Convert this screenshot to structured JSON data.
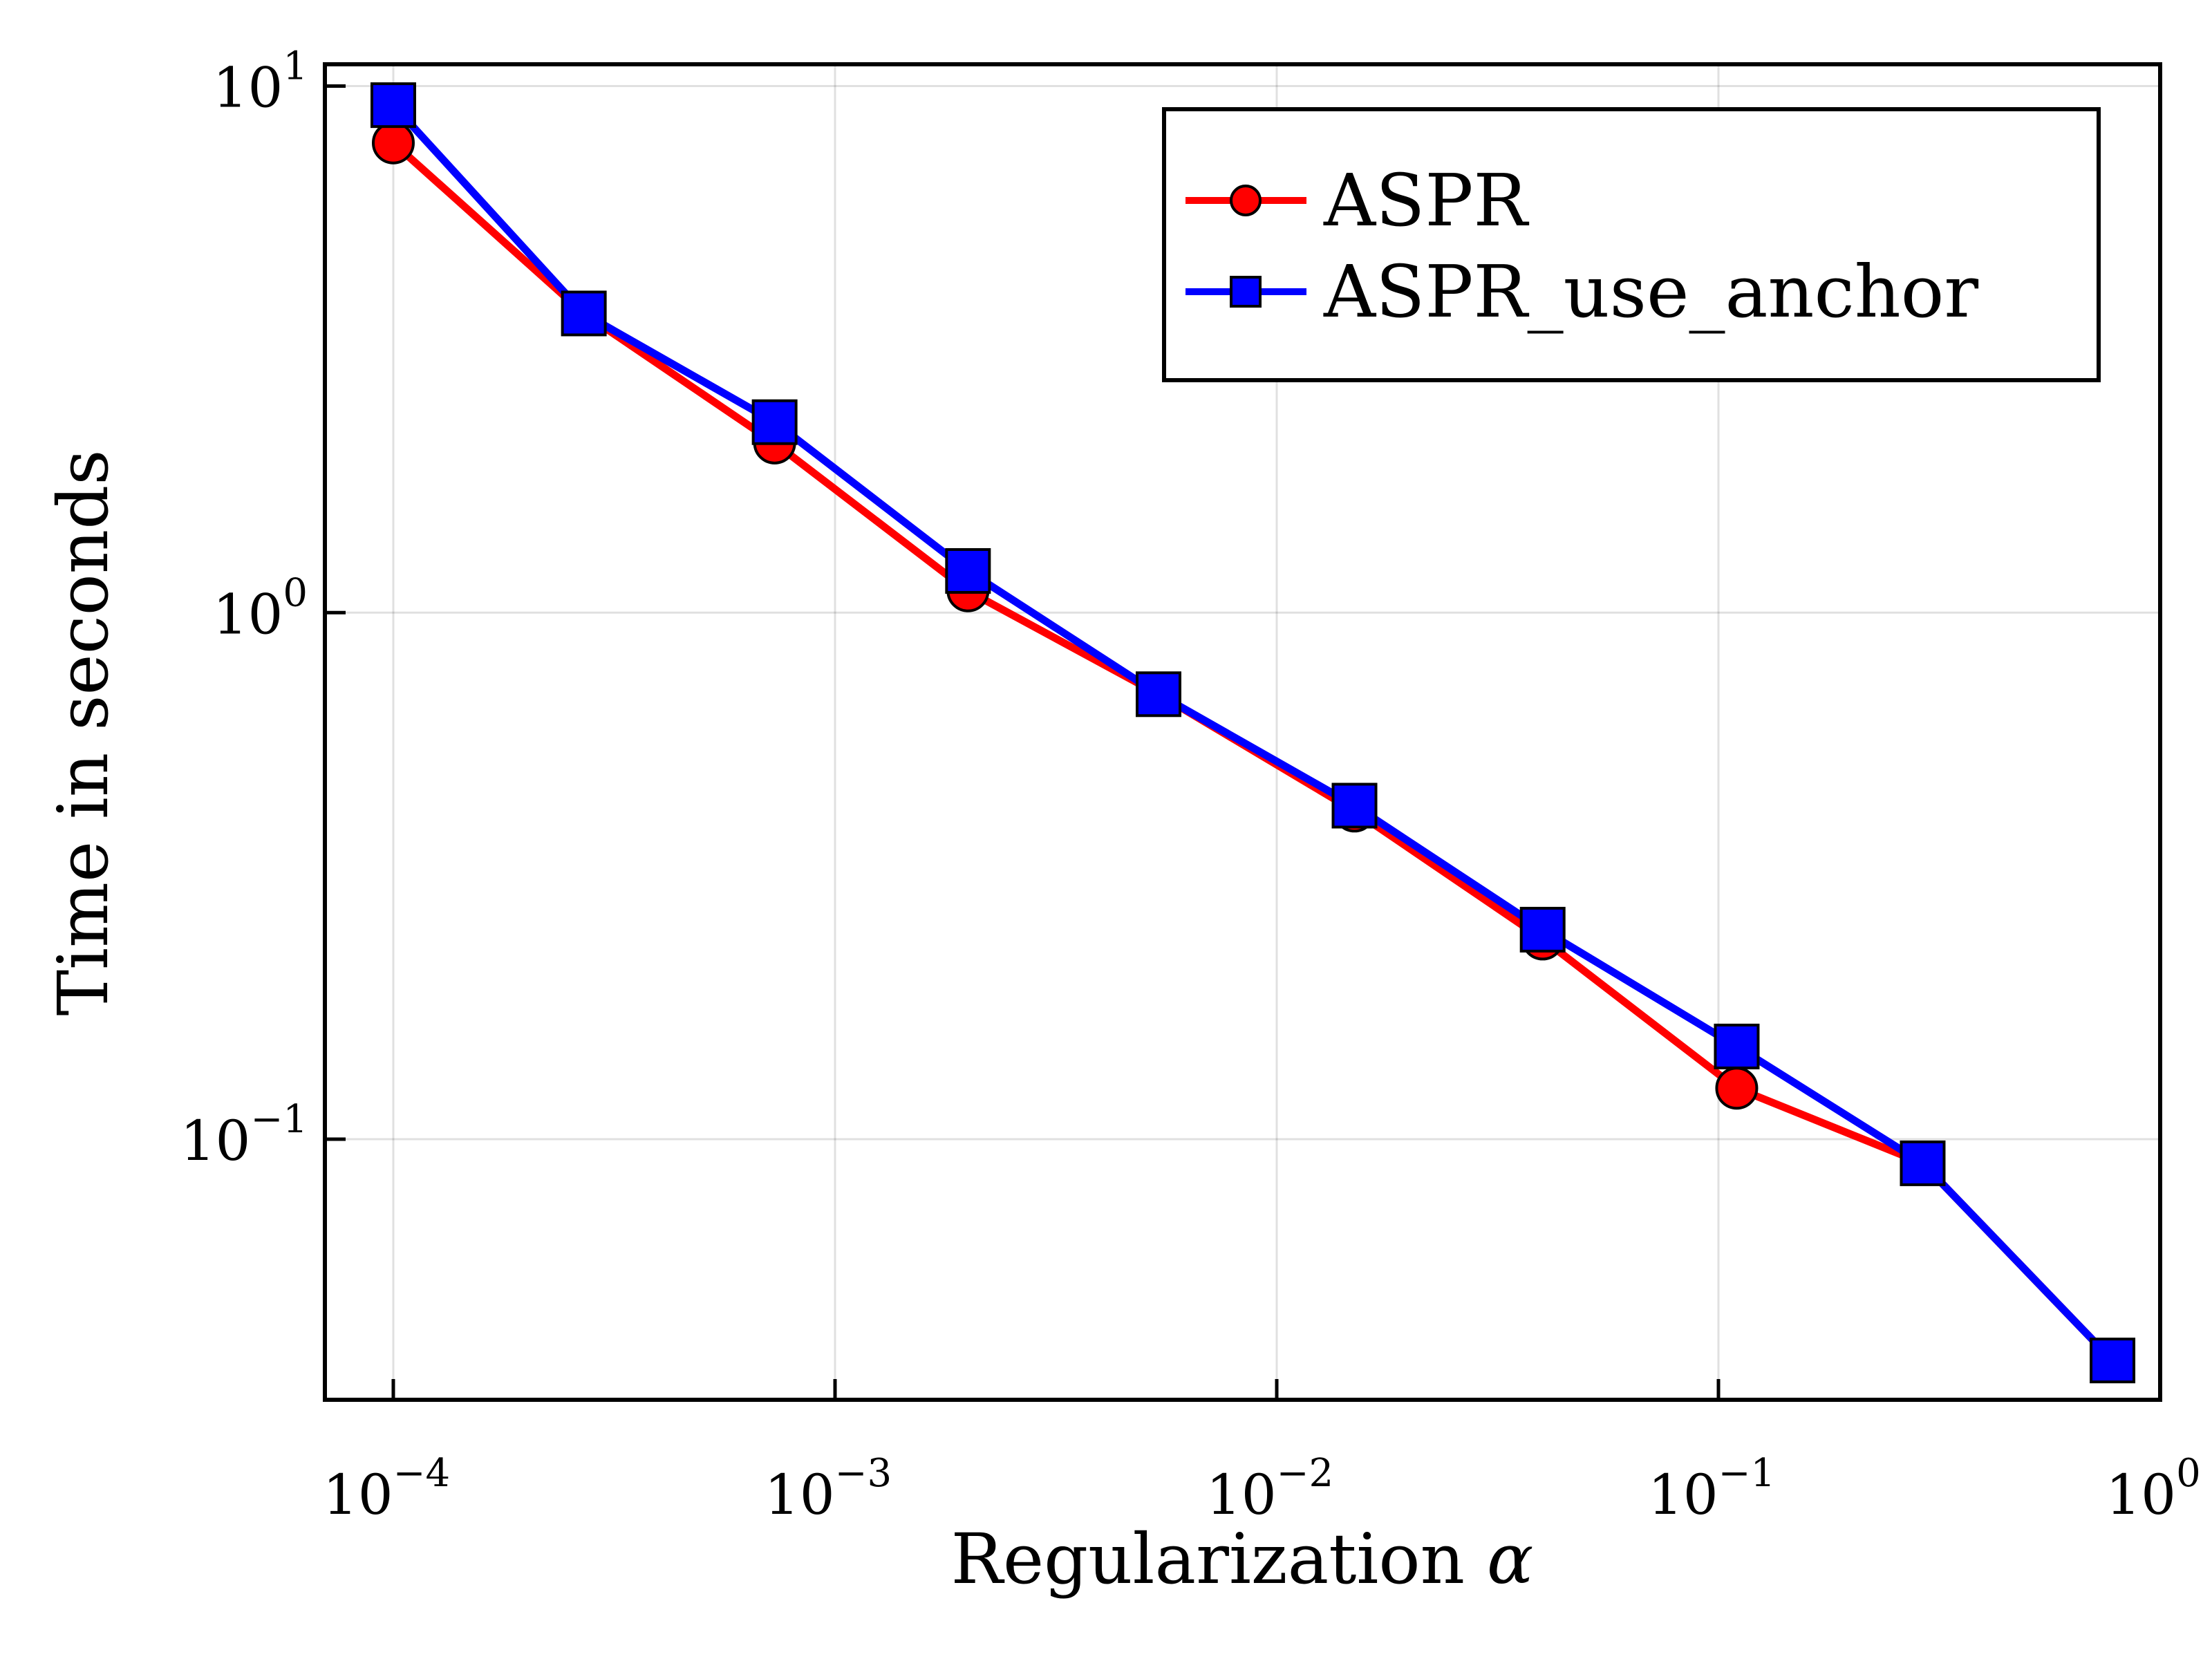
{
  "chart_data": {
    "type": "line",
    "xlabel": "Regularization",
    "xlabel_symbol": "α",
    "ylabel": "Time in seconds",
    "x_scale": "log",
    "y_scale": "log",
    "xlim": [
      7e-05,
      1.0
    ],
    "ylim": [
      0.032,
      11.0
    ],
    "grid": true,
    "legend_position": "top-right",
    "x_ticks": [
      {
        "value": 0.0001,
        "base": "10",
        "exp": "−4"
      },
      {
        "value": 0.001,
        "base": "10",
        "exp": "−3"
      },
      {
        "value": 0.01,
        "base": "10",
        "exp": "−2"
      },
      {
        "value": 0.1,
        "base": "10",
        "exp": "−1"
      },
      {
        "value": 1,
        "base": "10",
        "exp": "0"
      }
    ],
    "y_ticks": [
      {
        "value": 0.1,
        "base": "10",
        "exp": "−1"
      },
      {
        "value": 1,
        "base": "10",
        "exp": "0"
      },
      {
        "value": 10,
        "base": "10",
        "exp": "1"
      }
    ],
    "x": [
      0.0001,
      0.00027,
      0.00073,
      0.002,
      0.0054,
      0.015,
      0.04,
      0.11,
      0.29,
      0.78
    ],
    "series": [
      {
        "name": "ASPR",
        "color": "#ff0000",
        "marker": "circle",
        "values": [
          7.8,
          3.7,
          2.1,
          1.1,
          0.7,
          0.42,
          0.24,
          0.125,
          0.09,
          0.038
        ]
      },
      {
        "name": "ASPR_use_anchor",
        "color": "#0000ff",
        "marker": "square",
        "values": [
          9.2,
          3.7,
          2.3,
          1.2,
          0.7,
          0.43,
          0.25,
          0.15,
          0.09,
          0.038
        ]
      }
    ]
  }
}
